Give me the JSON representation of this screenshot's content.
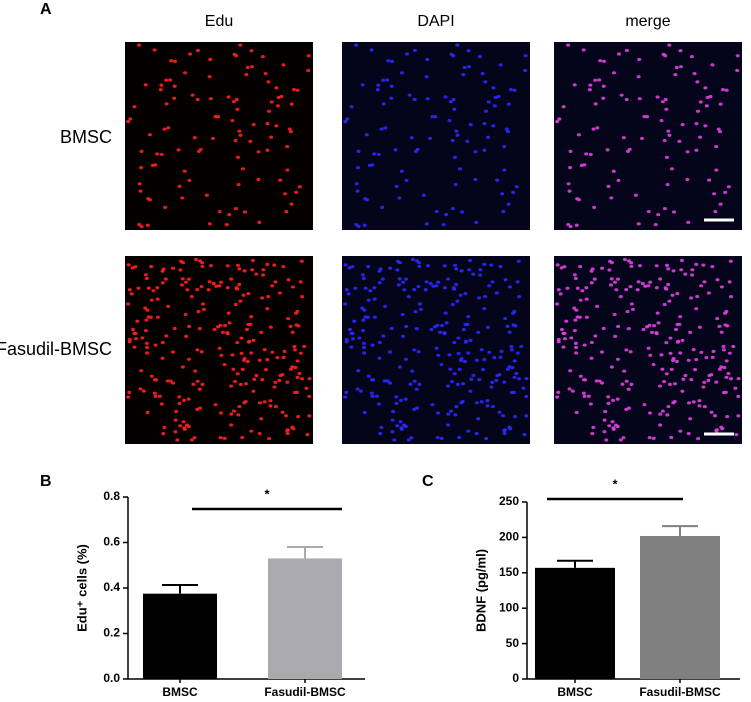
{
  "figure_a": {
    "panel": "A",
    "columns": [
      "Edu",
      "DAPI",
      "merge"
    ],
    "rows": [
      "BMSC",
      "Fasudil-BMSC"
    ]
  },
  "chart_data": [
    {
      "type": "bar",
      "panel": "B",
      "y_label": "Edu⁺ cells (%)",
      "categories": [
        "BMSC",
        "Fasudil-BMSC"
      ],
      "values": [
        0.375,
        0.53
      ],
      "errors": [
        0.038,
        0.05
      ],
      "colors": [
        "#000000",
        "#a9a9ae"
      ],
      "ylim": [
        0,
        0.8
      ],
      "yticks": [
        {
          "value": 0,
          "label": "0.0"
        },
        0.2,
        0.4,
        0.6,
        0.8
      ],
      "annotation": "*"
    },
    {
      "type": "bar",
      "panel": "C",
      "y_label": "BDNF (pg/ml)",
      "categories": [
        "BMSC",
        "Fasudil-BMSC"
      ],
      "values": [
        157,
        202
      ],
      "errors": [
        10,
        14
      ],
      "colors": [
        "#000000",
        "#808080"
      ],
      "ylim": [
        0,
        250
      ],
      "yticks": [
        0,
        50,
        100,
        150,
        200,
        250
      ],
      "annotation": "*"
    }
  ]
}
